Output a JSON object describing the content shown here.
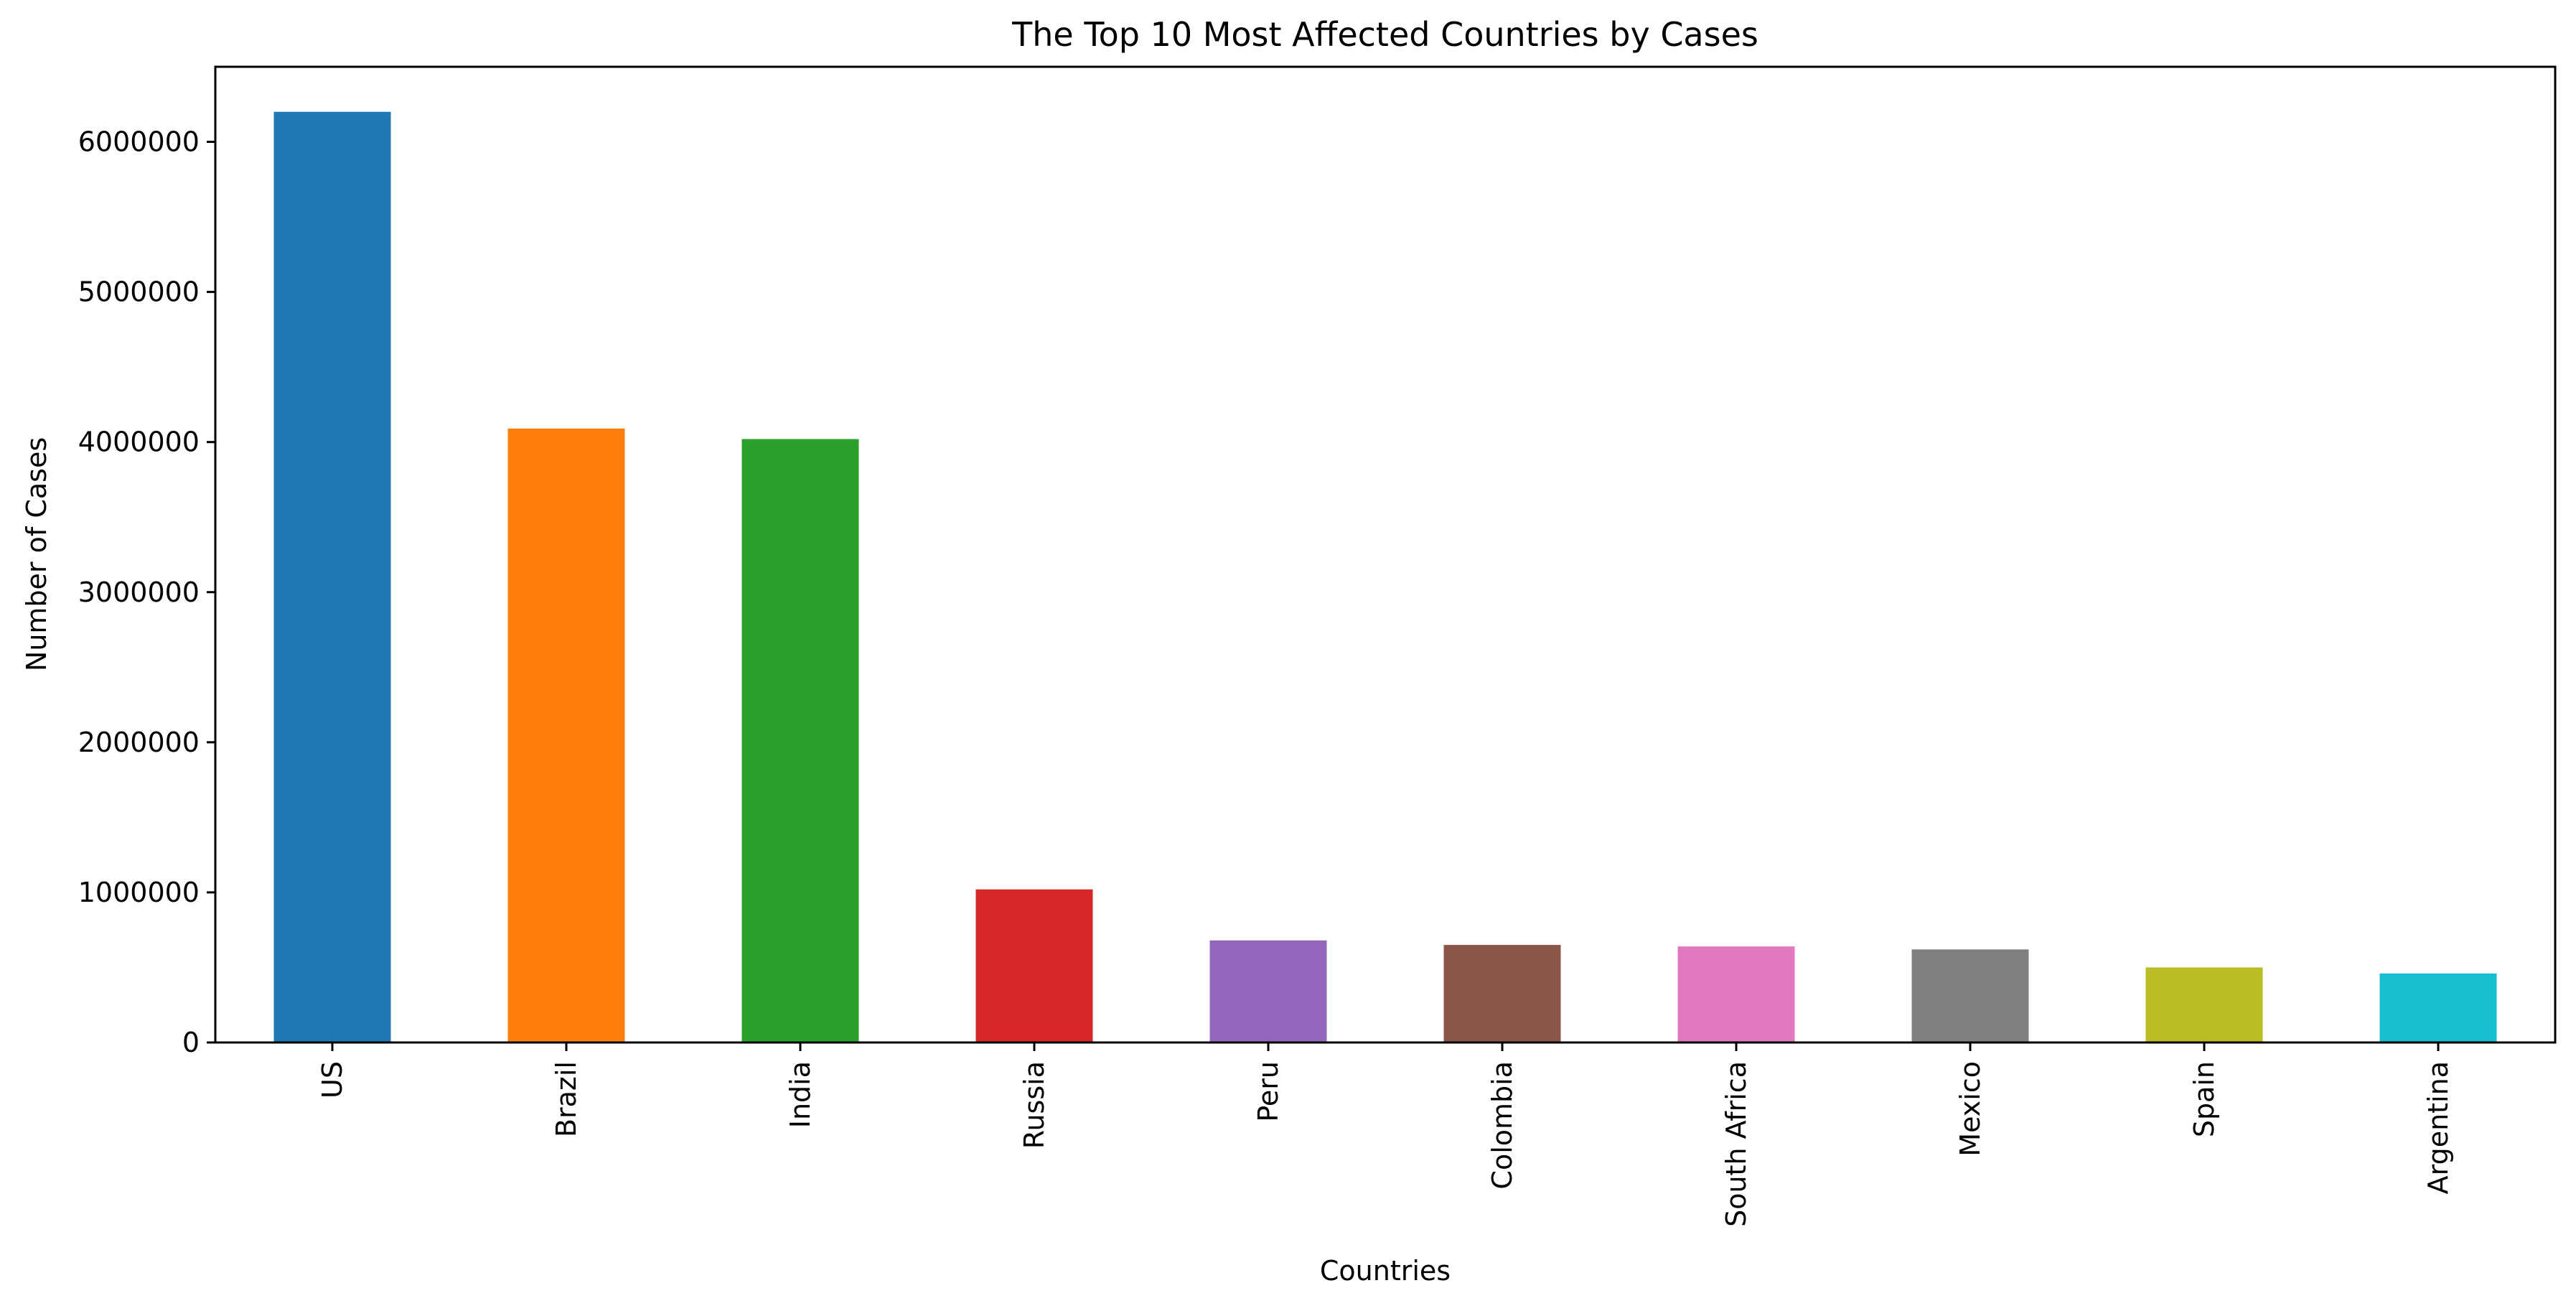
{
  "chart_data": {
    "type": "bar",
    "title": "The Top 10 Most Affected Countries by Cases",
    "xlabel": "Countries",
    "ylabel": "Number of Cases",
    "categories": [
      "US",
      "Brazil",
      "India",
      "Russia",
      "Peru",
      "Colombia",
      "South Africa",
      "Mexico",
      "Spain",
      "Argentina"
    ],
    "values": [
      6200000,
      4090000,
      4020000,
      1020000,
      680000,
      650000,
      640000,
      620000,
      500000,
      460000
    ],
    "colors": [
      "#1f77b4",
      "#ff7f0e",
      "#2ca02c",
      "#d62728",
      "#9467bd",
      "#8c564b",
      "#e377c2",
      "#7f7f7f",
      "#bcbd22",
      "#17becf"
    ],
    "yticks": [
      0,
      1000000,
      2000000,
      3000000,
      4000000,
      5000000,
      6000000
    ],
    "ytick_labels": [
      "0",
      "1000000",
      "2000000",
      "3000000",
      "4000000",
      "5000000",
      "6000000"
    ],
    "ylim": [
      0,
      6500000
    ],
    "grid": false,
    "legend": "none"
  }
}
